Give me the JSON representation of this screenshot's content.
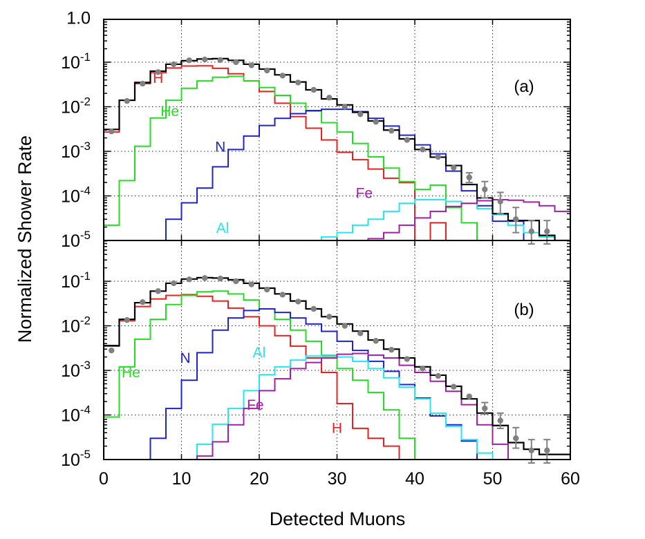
{
  "chart_data": {
    "type": "line",
    "xlabel": "Detected Muons",
    "ylabel": "Normalized Shower Rate",
    "xlim": [
      0,
      60
    ],
    "x_ticks": [
      "0",
      "10",
      "20",
      "30",
      "40",
      "50",
      "60"
    ],
    "yscale": "log",
    "grid": true,
    "bin_width": 2,
    "bin_starts": [
      0,
      2,
      4,
      6,
      8,
      10,
      12,
      14,
      16,
      18,
      20,
      22,
      24,
      26,
      28,
      30,
      32,
      34,
      36,
      38,
      40,
      42,
      44,
      46,
      48,
      50,
      52,
      54,
      56,
      58
    ],
    "colors": {
      "H": "#e8201f",
      "He": "#22dd22",
      "N": "#1e22d0",
      "Al": "#22e6f2",
      "Fe": "#a31ea8",
      "total": "#000000",
      "data": "#808080"
    },
    "panels": [
      {
        "label": "(a)",
        "ylim": [
          1e-05,
          1.0
        ],
        "y_ticks": [
          {
            "base": "1.0",
            "exp": ""
          },
          {
            "base": "10",
            "exp": "-1"
          },
          {
            "base": "10",
            "exp": "-2"
          },
          {
            "base": "10",
            "exp": "-3"
          },
          {
            "base": "10",
            "exp": "-4"
          },
          {
            "base": "10",
            "exp": "-5"
          }
        ],
        "species_labels": [
          {
            "name": "H",
            "text": "H",
            "x": 7.0,
            "y": 0.042
          },
          {
            "name": "He",
            "text": "He",
            "x": 8.5,
            "y": 0.0075
          },
          {
            "name": "N",
            "text": "N",
            "x": 15.0,
            "y": 0.0012
          },
          {
            "name": "Fe",
            "text": "Fe",
            "x": 33.5,
            "y": 0.00011
          },
          {
            "name": "Al",
            "text": "Al",
            "x": 15.3,
            "y": 1.82e-05
          }
        ],
        "series": [
          {
            "name": "H",
            "color": "#e8201f",
            "values": [
              0.0027,
              0.014,
              0.033,
              0.058,
              0.074,
              0.082,
              0.083,
              0.073,
              0.055,
              0.038,
              0.022,
              0.012,
              0.006,
              0.0033,
              0.0018,
              0.00095,
              0.00065,
              0.0004,
              0.00025,
              0.0002,
              1e-06,
              2.5e-05,
              1e-06,
              null,
              null,
              null,
              null,
              null,
              null,
              null
            ]
          },
          {
            "name": "He",
            "color": "#22dd22",
            "values": [
              2.2e-05,
              0.00022,
              0.0013,
              0.0056,
              0.014,
              0.026,
              0.038,
              0.046,
              0.048,
              0.038,
              0.027,
              0.018,
              0.012,
              0.008,
              0.0044,
              0.0027,
              0.0015,
              0.00075,
              0.00042,
              0.00021,
              0.00014,
              0.000175,
              5.5e-05,
              2.5e-05,
              1e-06,
              null,
              null,
              null,
              null,
              null
            ]
          },
          {
            "name": "N",
            "color": "#1e22d0",
            "values": [
              null,
              1e-06,
              1e-06,
              6e-06,
              3e-05,
              7e-05,
              0.00015,
              0.00045,
              0.0011,
              0.0022,
              0.0038,
              0.0055,
              0.007,
              0.0082,
              0.0088,
              0.0088,
              0.0078,
              0.0055,
              0.0037,
              0.0023,
              0.0014,
              0.00088,
              0.00036,
              0.00013,
              6e-05,
              2.7e-05,
              2.7e-05,
              null,
              null,
              null
            ]
          },
          {
            "name": "Al",
            "color": "#22e6f2",
            "values": [
              null,
              null,
              null,
              null,
              null,
              null,
              null,
              null,
              null,
              null,
              null,
              null,
              null,
              null,
              1.2e-05,
              1.5e-05,
              2.2e-05,
              3e-05,
              4.5e-05,
              6.8e-05,
              8.2e-05,
              8.2e-05,
              7.5e-05,
              6.8e-05,
              5.2e-05,
              3.8e-05,
              2.2e-05,
              1.5e-05,
              1.2e-05,
              1e-06
            ]
          },
          {
            "name": "Fe",
            "color": "#a31ea8",
            "values": [
              null,
              null,
              null,
              null,
              null,
              null,
              null,
              null,
              null,
              null,
              null,
              null,
              null,
              null,
              null,
              null,
              null,
              1.1e-05,
              1.5e-05,
              2.2e-05,
              3.2e-05,
              4.5e-05,
              5.8e-05,
              6.8e-05,
              7.8e-05,
              8.2e-05,
              8e-05,
              7.3e-05,
              6e-05,
              4.5e-05
            ]
          },
          {
            "name": "total",
            "color": "#000000",
            "values": [
              0.0031,
              0.014,
              0.035,
              0.063,
              0.09,
              0.108,
              0.118,
              0.12,
              0.11,
              0.09,
              0.07,
              0.052,
              0.036,
              0.024,
              0.015,
              0.011,
              0.0075,
              0.0048,
              0.003,
              0.0019,
              0.0011,
              0.00074,
              0.00048,
              0.00018,
              9e-05,
              4e-05,
              2.8e-05,
              2.8e-05,
              1.3e-05,
              1e-05
            ]
          }
        ],
        "data_points": [
          {
            "x": 1,
            "y": 0.0028
          },
          {
            "x": 3,
            "y": 0.0135
          },
          {
            "x": 5,
            "y": 0.033
          },
          {
            "x": 7,
            "y": 0.06
          },
          {
            "x": 9,
            "y": 0.09
          },
          {
            "x": 11,
            "y": 0.11
          },
          {
            "x": 13,
            "y": 0.115
          },
          {
            "x": 15,
            "y": 0.112
          },
          {
            "x": 17,
            "y": 0.1
          },
          {
            "x": 19,
            "y": 0.085
          },
          {
            "x": 21,
            "y": 0.065
          },
          {
            "x": 23,
            "y": 0.05
          },
          {
            "x": 25,
            "y": 0.035
          },
          {
            "x": 27,
            "y": 0.024
          },
          {
            "x": 29,
            "y": 0.016
          },
          {
            "x": 31,
            "y": 0.01
          },
          {
            "x": 33,
            "y": 0.0068
          },
          {
            "x": 35,
            "y": 0.0046
          },
          {
            "x": 37,
            "y": 0.0029
          },
          {
            "x": 39,
            "y": 0.0018
          },
          {
            "x": 41,
            "y": 0.0011
          },
          {
            "x": 43,
            "y": 0.00075
          },
          {
            "x": 45,
            "y": 0.00043
          },
          {
            "x": 47,
            "y": 0.00026,
            "err": [
              0.0002,
              0.00033
            ]
          },
          {
            "x": 49,
            "y": 0.00014,
            "err": [
              9e-05,
              0.00021
            ]
          },
          {
            "x": 51,
            "y": 7.5e-05,
            "err": [
              4e-05,
              0.00012
            ]
          },
          {
            "x": 53,
            "y": 3e-05,
            "err": [
              1.5e-05,
              5.5e-05
            ]
          },
          {
            "x": 55,
            "y": 1.6e-05,
            "err": [
              8e-06,
              2.8e-05
            ]
          },
          {
            "x": 57,
            "y": 1.6e-05,
            "err": [
              8e-06,
              2.8e-05
            ]
          }
        ]
      },
      {
        "label": "(b)",
        "ylim": [
          1e-05,
          0.5
        ],
        "y_ticks": [
          {
            "base": "10",
            "exp": "-1"
          },
          {
            "base": "10",
            "exp": "-2"
          },
          {
            "base": "10",
            "exp": "-3"
          },
          {
            "base": "10",
            "exp": "-4"
          },
          {
            "base": "10",
            "exp": "-5"
          }
        ],
        "species_labels": [
          {
            "name": "He",
            "text": "He",
            "x": 3.5,
            "y": 0.00085
          },
          {
            "name": "N",
            "text": "N",
            "x": 10.5,
            "y": 0.0018
          },
          {
            "name": "Al",
            "text": "Al",
            "x": 20.0,
            "y": 0.0024
          },
          {
            "name": "Fe",
            "text": "Fe",
            "x": 19.5,
            "y": 0.00016
          },
          {
            "name": "H",
            "text": "H",
            "x": 30.0,
            "y": 4.8e-05
          }
        ],
        "series": [
          {
            "name": "H",
            "color": "#e8201f",
            "values": [
              0.0035,
              0.013,
              0.027,
              0.04,
              0.048,
              0.05,
              0.046,
              0.036,
              0.025,
              0.016,
              0.01,
              0.006,
              0.0035,
              0.0019,
              0.0009,
              0.00018,
              5e-05,
              3e-05,
              2e-05,
              1e-06,
              null,
              null,
              null,
              null,
              null,
              null,
              null,
              null,
              null,
              null
            ]
          },
          {
            "name": "He",
            "color": "#22dd22",
            "values": [
              9e-05,
              0.0012,
              0.005,
              0.014,
              0.03,
              0.048,
              0.058,
              0.06,
              0.052,
              0.038,
              0.024,
              0.014,
              0.008,
              0.0045,
              0.0021,
              0.0011,
              0.0006,
              0.00032,
              0.00013,
              3e-05,
              1e-05,
              1e-06,
              null,
              null,
              null,
              null,
              null,
              null,
              null,
              null
            ]
          },
          {
            "name": "N",
            "color": "#1e22d0",
            "values": [
              null,
              1e-06,
              1e-06,
              3e-05,
              0.00014,
              0.0006,
              0.0025,
              0.008,
              0.015,
              0.022,
              0.024,
              0.02,
              0.015,
              0.011,
              0.0075,
              0.0045,
              0.0028,
              0.0016,
              0.00095,
              0.00048,
              0.00024,
              9.5e-05,
              6e-05,
              2.6e-05,
              1e-05,
              null,
              null,
              null,
              null,
              null
            ]
          },
          {
            "name": "Al",
            "color": "#22e6f2",
            "values": [
              null,
              null,
              null,
              null,
              null,
              1e-06,
              2.2e-05,
              6.2e-05,
              0.00014,
              0.00035,
              0.0008,
              0.0012,
              0.0017,
              0.0021,
              0.0022,
              0.002,
              0.0016,
              0.0011,
              0.00068,
              0.00042,
              0.00023,
              0.00011,
              5.5e-05,
              2.8e-05,
              1.4e-05,
              9e-06,
              null,
              null,
              null,
              null
            ]
          },
          {
            "name": "Fe",
            "color": "#a31ea8",
            "values": [
              null,
              null,
              null,
              null,
              null,
              7.5e-06,
              1.2e-05,
              2.5e-05,
              6e-05,
              0.00014,
              0.00035,
              0.00065,
              0.0011,
              0.0015,
              0.0019,
              0.0023,
              0.0024,
              0.0022,
              0.0019,
              0.0013,
              0.0009,
              0.00057,
              0.00034,
              0.00017,
              6e-05,
              2.2e-05,
              8e-06,
              null,
              null,
              null
            ]
          },
          {
            "name": "total",
            "color": "#000000",
            "values": [
              0.0036,
              0.014,
              0.033,
              0.06,
              0.09,
              0.112,
              0.12,
              0.118,
              0.108,
              0.09,
              0.07,
              0.052,
              0.036,
              0.024,
              0.016,
              0.011,
              0.0076,
              0.0048,
              0.003,
              0.0019,
              0.0012,
              0.00078,
              0.00044,
              0.00023,
              0.00011,
              5.8e-05,
              2.4e-05,
              1.7e-05,
              1.3e-05,
              1.3e-05
            ]
          }
        ],
        "data_points": [
          {
            "x": 1,
            "y": 0.0028
          },
          {
            "x": 3,
            "y": 0.0135
          },
          {
            "x": 5,
            "y": 0.034
          },
          {
            "x": 7,
            "y": 0.06
          },
          {
            "x": 9,
            "y": 0.09
          },
          {
            "x": 11,
            "y": 0.11
          },
          {
            "x": 13,
            "y": 0.118
          },
          {
            "x": 15,
            "y": 0.115
          },
          {
            "x": 17,
            "y": 0.1
          },
          {
            "x": 19,
            "y": 0.085
          },
          {
            "x": 21,
            "y": 0.065
          },
          {
            "x": 23,
            "y": 0.05
          },
          {
            "x": 25,
            "y": 0.035
          },
          {
            "x": 27,
            "y": 0.024
          },
          {
            "x": 29,
            "y": 0.016
          },
          {
            "x": 31,
            "y": 0.01
          },
          {
            "x": 33,
            "y": 0.0068
          },
          {
            "x": 35,
            "y": 0.0046
          },
          {
            "x": 37,
            "y": 0.0029
          },
          {
            "x": 39,
            "y": 0.0018
          },
          {
            "x": 41,
            "y": 0.0011
          },
          {
            "x": 43,
            "y": 0.00075
          },
          {
            "x": 45,
            "y": 0.00043
          },
          {
            "x": 47,
            "y": 0.00026
          },
          {
            "x": 49,
            "y": 0.00014,
            "err": [
              0.000105,
              0.00019
            ]
          },
          {
            "x": 51,
            "y": 7.5e-05,
            "err": [
              5e-05,
              0.00011
            ]
          },
          {
            "x": 53,
            "y": 3e-05,
            "err": [
              1.8e-05,
              5.2e-05
            ]
          },
          {
            "x": 55,
            "y": 1.6e-05,
            "err": [
              8e-06,
              2.8e-05
            ]
          },
          {
            "x": 57,
            "y": 1.6e-05,
            "err": [
              8e-06,
              2.8e-05
            ]
          }
        ]
      }
    ]
  }
}
